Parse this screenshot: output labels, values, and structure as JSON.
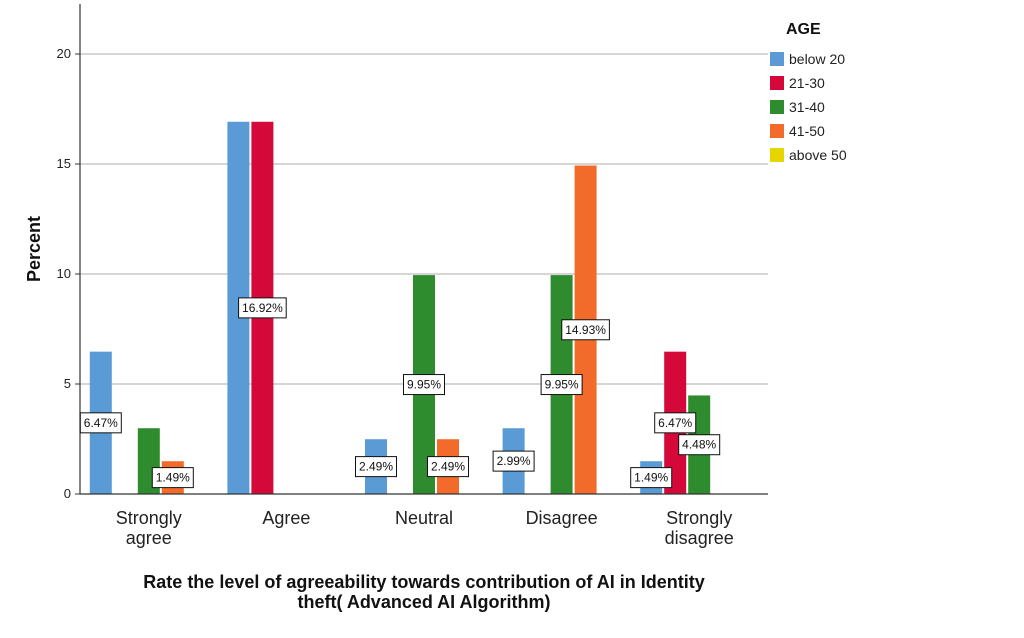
{
  "chart_data": {
    "type": "bar",
    "title": "",
    "xlabel": "Rate the level of agreeability towards contribution of AI in Identity theft( Advanced AI Algorithm)",
    "ylabel": "Percent",
    "ylim": [
      0,
      22
    ],
    "yticks": [
      0,
      5,
      10,
      15,
      20
    ],
    "grid": true,
    "legend_title": "AGE",
    "legend_position": "right",
    "categories": [
      [
        "Strongly",
        "agree"
      ],
      [
        "Agree"
      ],
      [
        "Neutral"
      ],
      [
        "Disagree"
      ],
      [
        "Strongly",
        "disagree"
      ]
    ],
    "series": [
      {
        "name": "below 20",
        "color": "#5b9bd5",
        "values": [
          6.47,
          16.92,
          2.49,
          2.99,
          1.49
        ],
        "labels": [
          "6.47%",
          "",
          "2.49%",
          "2.99%",
          "1.49%"
        ]
      },
      {
        "name": "21-30",
        "color": "#d4093a",
        "values": [
          0,
          16.92,
          0,
          0,
          6.47
        ],
        "labels": [
          "",
          "16.92%",
          "",
          "",
          "6.47%"
        ]
      },
      {
        "name": "31-40",
        "color": "#2e8b2e",
        "values": [
          2.99,
          0,
          9.95,
          9.95,
          4.48
        ],
        "labels": [
          "",
          "",
          "9.95%",
          "9.95%",
          "4.48%"
        ]
      },
      {
        "name": "41-50",
        "color": "#f26b2a",
        "values": [
          1.49,
          0,
          2.49,
          14.93,
          0
        ],
        "labels": [
          "1.49%",
          "",
          "2.49%",
          "14.93%",
          ""
        ]
      },
      {
        "name": "above 50",
        "color": "#e6d600",
        "values": [
          0,
          0,
          0,
          0,
          0
        ],
        "labels": [
          "",
          "",
          "",
          "",
          ""
        ]
      }
    ]
  }
}
